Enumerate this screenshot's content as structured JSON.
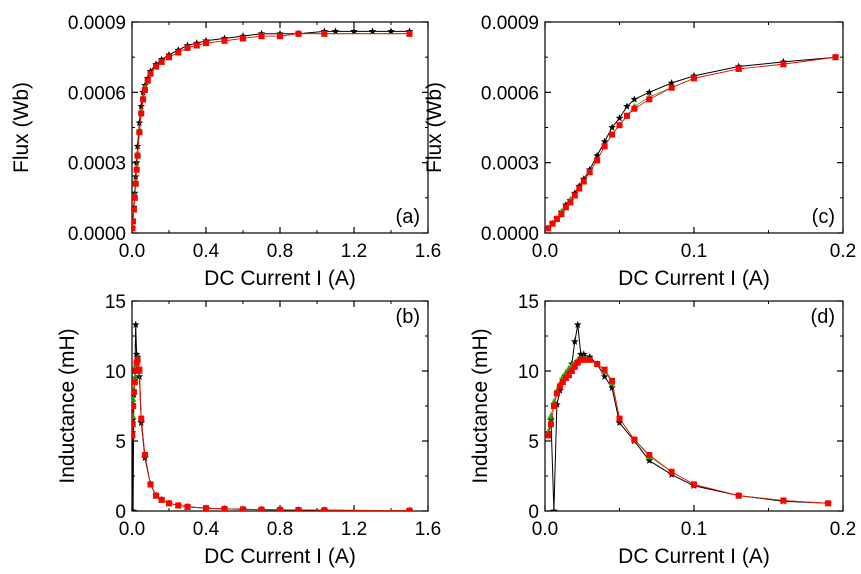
{
  "colors": {
    "series_black": "#000000",
    "series_red": "#ff0000",
    "series_green": "#33aa00"
  },
  "chart_data": [
    {
      "type": "line",
      "panel": "(a)",
      "xlabel": "DC Current I (A)",
      "ylabel": "Flux (Wb)",
      "xlim": [
        0,
        1.6
      ],
      "ylim": [
        0,
        0.0009
      ],
      "xticks": [
        "0.0",
        "0.4",
        "0.8",
        "1.2",
        "1.6"
      ],
      "yticks": [
        "0.0000",
        "0.0003",
        "0.0006",
        "0.0009"
      ],
      "grid": false,
      "legend": "none",
      "series": [
        {
          "color": "#000000",
          "marker": "star",
          "x": [
            0.002,
            0.005,
            0.01,
            0.015,
            0.02,
            0.025,
            0.03,
            0.04,
            0.05,
            0.06,
            0.07,
            0.085,
            0.1,
            0.13,
            0.16,
            0.2,
            0.25,
            0.3,
            0.35,
            0.4,
            0.5,
            0.6,
            0.7,
            0.8,
            0.9,
            1.04,
            1.1,
            1.2,
            1.3,
            1.4,
            1.5
          ],
          "y": [
            2e-05,
            5e-05,
            0.00011,
            0.00017,
            0.00024,
            0.0003,
            0.00037,
            0.00047,
            0.00054,
            0.0006,
            0.00063,
            0.00066,
            0.00069,
            0.00072,
            0.00074,
            0.00076,
            0.00078,
            0.0008,
            0.00081,
            0.00082,
            0.00083,
            0.00084,
            0.00085,
            0.00085,
            0.00085,
            0.00086,
            0.00086,
            0.00086,
            0.00086,
            0.00086,
            0.00086
          ]
        },
        {
          "color": "#33aa00",
          "marker": "triangle",
          "x": [
            0.002,
            0.005,
            0.01,
            0.015,
            0.02,
            0.025,
            0.03,
            0.04,
            0.05,
            0.06,
            0.07,
            0.085,
            0.1,
            0.13,
            0.16,
            0.2,
            0.25,
            0.3,
            0.35,
            0.4,
            0.5,
            0.6,
            0.7,
            0.8,
            0.9,
            1.04,
            1.5
          ],
          "y": [
            2e-05,
            5e-05,
            0.0001,
            0.00016,
            0.00022,
            0.00028,
            0.00034,
            0.00044,
            0.00052,
            0.00058,
            0.00062,
            0.00065,
            0.00068,
            0.00071,
            0.00073,
            0.00075,
            0.00077,
            0.00079,
            0.0008,
            0.00081,
            0.00082,
            0.00083,
            0.00084,
            0.00084,
            0.00085,
            0.00085,
            0.00085
          ]
        },
        {
          "color": "#ff0000",
          "marker": "square",
          "x": [
            0.002,
            0.005,
            0.01,
            0.015,
            0.02,
            0.025,
            0.03,
            0.04,
            0.05,
            0.06,
            0.07,
            0.085,
            0.1,
            0.13,
            0.16,
            0.2,
            0.25,
            0.3,
            0.35,
            0.4,
            0.5,
            0.6,
            0.7,
            0.8,
            0.9,
            1.04,
            1.5
          ],
          "y": [
            2e-05,
            5e-05,
            0.0001,
            0.00015,
            0.00021,
            0.00027,
            0.00033,
            0.00043,
            0.00051,
            0.00057,
            0.00061,
            0.00065,
            0.00068,
            0.00071,
            0.00073,
            0.00075,
            0.00077,
            0.00079,
            0.0008,
            0.00081,
            0.00082,
            0.00083,
            0.00084,
            0.00084,
            0.00085,
            0.00085,
            0.00085
          ]
        }
      ]
    },
    {
      "type": "line",
      "panel": "(b)",
      "xlabel": "DC Current I (A)",
      "ylabel": "Inductance (mH)",
      "xlim": [
        0,
        1.6
      ],
      "ylim": [
        0,
        15
      ],
      "xticks": [
        "0.0",
        "0.4",
        "0.8",
        "1.2",
        "1.6"
      ],
      "yticks": [
        "0",
        "5",
        "10",
        "15"
      ],
      "grid": false,
      "legend": "none",
      "series": [
        {
          "color": "#000000",
          "marker": "star",
          "x": [
            0.002,
            0.004,
            0.006,
            0.01,
            0.015,
            0.02,
            0.025,
            0.03,
            0.04,
            0.05,
            0.07,
            0.1,
            0.13,
            0.16,
            0.2,
            0.25,
            0.3,
            0.4,
            0.5,
            0.6,
            0.7,
            0.8,
            0.9,
            1.04,
            1.5
          ],
          "y": [
            5.6,
            6.5,
            0.0,
            8.3,
            9.5,
            13.3,
            11.2,
            11.0,
            9.6,
            6.3,
            3.8,
            1.9,
            1.1,
            0.8,
            0.55,
            0.4,
            0.3,
            0.2,
            0.15,
            0.12,
            0.1,
            0.08,
            0.07,
            0.06,
            0.03
          ]
        },
        {
          "color": "#33aa00",
          "marker": "triangle",
          "x": [
            0.002,
            0.004,
            0.006,
            0.01,
            0.015,
            0.02,
            0.025,
            0.03,
            0.04,
            0.05,
            0.07,
            0.1,
            0.13,
            0.16,
            0.2,
            0.25,
            0.3,
            0.4,
            0.5,
            0.6,
            0.7,
            0.8,
            0.9,
            1.04,
            1.5
          ],
          "y": [
            5.5,
            6.8,
            8.0,
            8.7,
            9.5,
            10.4,
            10.8,
            10.9,
            10.0,
            6.6,
            4.0,
            1.9,
            1.1,
            0.8,
            0.55,
            0.4,
            0.3,
            0.2,
            0.15,
            0.12,
            0.1,
            0.08,
            0.07,
            0.06,
            0.03
          ]
        },
        {
          "color": "#ff0000",
          "marker": "square",
          "x": [
            0.002,
            0.004,
            0.006,
            0.01,
            0.015,
            0.02,
            0.025,
            0.03,
            0.04,
            0.05,
            0.07,
            0.1,
            0.13,
            0.16,
            0.2,
            0.25,
            0.3,
            0.4,
            0.5,
            0.6,
            0.7,
            0.8,
            0.9,
            1.04,
            1.5
          ],
          "y": [
            5.4,
            6.2,
            7.5,
            8.5,
            9.2,
            10.0,
            10.6,
            10.8,
            10.1,
            6.6,
            4.0,
            1.9,
            1.1,
            0.8,
            0.55,
            0.4,
            0.3,
            0.2,
            0.15,
            0.12,
            0.1,
            0.08,
            0.07,
            0.06,
            0.03
          ]
        }
      ]
    },
    {
      "type": "line",
      "panel": "(c)",
      "xlabel": "DC Current I (A)",
      "ylabel": "Flux (Wb)",
      "xlim": [
        0,
        0.2
      ],
      "ylim": [
        0,
        0.0009
      ],
      "xticks": [
        "0.0",
        "0.1",
        "0.2"
      ],
      "yticks": [
        "0.0000",
        "0.0003",
        "0.0006",
        "0.0009"
      ],
      "grid": false,
      "legend": "none",
      "series": [
        {
          "color": "#000000",
          "marker": "star",
          "x": [
            0.002,
            0.005,
            0.008,
            0.011,
            0.014,
            0.017,
            0.02,
            0.023,
            0.026,
            0.03,
            0.035,
            0.04,
            0.045,
            0.05,
            0.055,
            0.06,
            0.07,
            0.085,
            0.1,
            0.13,
            0.16,
            0.195
          ],
          "y": [
            2e-05,
            4e-05,
            6e-05,
            9e-05,
            0.00012,
            0.00014,
            0.00017,
            0.0002,
            0.00023,
            0.00027,
            0.00033,
            0.00039,
            0.00045,
            0.00049,
            0.00054,
            0.00057,
            0.0006,
            0.00064,
            0.00067,
            0.00071,
            0.00073,
            0.00075
          ]
        },
        {
          "color": "#33aa00",
          "marker": "triangle",
          "x": [
            0.002,
            0.005,
            0.008,
            0.011,
            0.014,
            0.017,
            0.02,
            0.023,
            0.026,
            0.03,
            0.035,
            0.04,
            0.045,
            0.05,
            0.055,
            0.06,
            0.07,
            0.085,
            0.1,
            0.13,
            0.16,
            0.195
          ],
          "y": [
            2e-05,
            4e-05,
            6e-05,
            9e-05,
            0.00011,
            0.00014,
            0.00016,
            0.00019,
            0.00022,
            0.00026,
            0.00031,
            0.00037,
            0.00042,
            0.00046,
            0.0005,
            0.00054,
            0.00058,
            0.00062,
            0.00066,
            0.0007,
            0.00072,
            0.00075
          ]
        },
        {
          "color": "#ff0000",
          "marker": "square",
          "x": [
            0.002,
            0.005,
            0.008,
            0.011,
            0.014,
            0.017,
            0.02,
            0.023,
            0.026,
            0.03,
            0.035,
            0.04,
            0.045,
            0.05,
            0.055,
            0.06,
            0.07,
            0.085,
            0.1,
            0.13,
            0.16,
            0.195
          ],
          "y": [
            2e-05,
            4e-05,
            6e-05,
            8e-05,
            0.00011,
            0.00013,
            0.00016,
            0.00019,
            0.00022,
            0.00026,
            0.00031,
            0.00037,
            0.00042,
            0.00046,
            0.0005,
            0.00053,
            0.00057,
            0.00062,
            0.00066,
            0.0007,
            0.00072,
            0.00075
          ]
        }
      ]
    },
    {
      "type": "line",
      "panel": "(d)",
      "xlabel": "DC Current I (A)",
      "ylabel": "Inductance (mH)",
      "xlim": [
        0,
        0.2
      ],
      "ylim": [
        0,
        15
      ],
      "xticks": [
        "0.0",
        "0.1",
        "0.2"
      ],
      "yticks": [
        "0",
        "5",
        "10",
        "15"
      ],
      "grid": false,
      "legend": "none",
      "series": [
        {
          "color": "#000000",
          "marker": "star",
          "x": [
            0.002,
            0.004,
            0.006,
            0.008,
            0.01,
            0.012,
            0.014,
            0.016,
            0.018,
            0.02,
            0.022,
            0.024,
            0.026,
            0.03,
            0.035,
            0.04,
            0.045,
            0.05,
            0.06,
            0.07,
            0.085,
            0.1,
            0.13,
            0.16,
            0.19
          ],
          "y": [
            5.6,
            6.5,
            0.0,
            7.6,
            8.6,
            9.4,
            9.7,
            10.0,
            10.5,
            12.1,
            13.3,
            11.2,
            11.2,
            11.0,
            10.5,
            9.6,
            8.8,
            6.3,
            5.0,
            3.6,
            2.6,
            1.8,
            1.1,
            0.7,
            0.55
          ]
        },
        {
          "color": "#33aa00",
          "marker": "triangle",
          "x": [
            0.002,
            0.004,
            0.006,
            0.008,
            0.01,
            0.012,
            0.014,
            0.016,
            0.018,
            0.02,
            0.022,
            0.024,
            0.026,
            0.03,
            0.035,
            0.04,
            0.045,
            0.05,
            0.06,
            0.07,
            0.085,
            0.1,
            0.13,
            0.16,
            0.19
          ],
          "y": [
            5.6,
            6.8,
            7.8,
            8.6,
            9.1,
            9.6,
            9.9,
            10.2,
            10.4,
            10.6,
            10.8,
            10.9,
            10.9,
            10.8,
            10.5,
            10.0,
            9.2,
            6.6,
            5.1,
            3.9,
            2.8,
            1.9,
            1.1,
            0.75,
            0.55
          ]
        },
        {
          "color": "#ff0000",
          "marker": "square",
          "x": [
            0.002,
            0.004,
            0.006,
            0.008,
            0.01,
            0.012,
            0.014,
            0.016,
            0.018,
            0.02,
            0.022,
            0.024,
            0.026,
            0.03,
            0.035,
            0.04,
            0.045,
            0.05,
            0.06,
            0.07,
            0.085,
            0.1,
            0.13,
            0.16,
            0.19
          ],
          "y": [
            5.4,
            6.2,
            7.5,
            8.4,
            8.9,
            9.2,
            9.5,
            9.7,
            10.0,
            10.3,
            10.6,
            10.8,
            10.8,
            10.8,
            10.5,
            10.1,
            9.3,
            6.6,
            5.1,
            4.0,
            2.8,
            1.9,
            1.1,
            0.75,
            0.55
          ]
        }
      ]
    }
  ]
}
